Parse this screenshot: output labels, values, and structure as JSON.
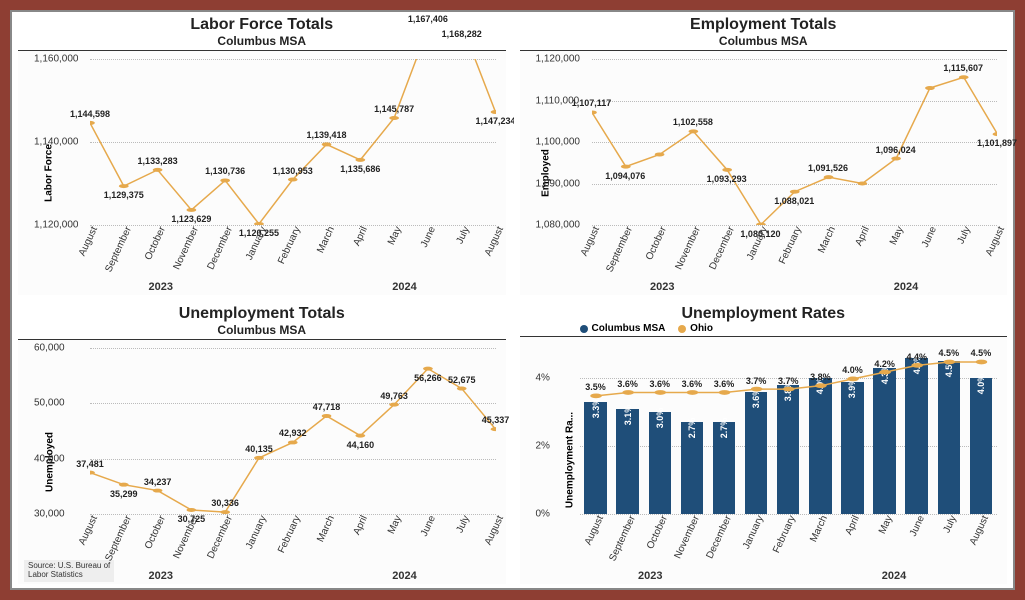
{
  "months": [
    "August",
    "September",
    "October",
    "November",
    "December",
    "January",
    "February",
    "March",
    "April",
    "May",
    "June",
    "July",
    "August"
  ],
  "years": {
    "y2023": "2023",
    "y2024": "2024"
  },
  "colors": {
    "line": "#e6a94c",
    "marker": "#e6a94c",
    "bar": "#1f4e79",
    "grid": "#bbbbbb",
    "text": "#222222",
    "bg": "#ffffff"
  },
  "panels": {
    "labor_force": {
      "title": "Labor Force Totals",
      "subtitle": "Columbus MSA",
      "ylabel": "Labor Force",
      "ylim": [
        1120000,
        1160000
      ],
      "ytick_step": 20000,
      "ytick_format": "comma",
      "values": [
        1144598,
        1129375,
        1133283,
        1123629,
        1130736,
        1120255,
        1130953,
        1139418,
        1135686,
        1145787,
        1167406,
        1168282,
        1147234
      ],
      "label_pos": [
        "above",
        "below",
        "above",
        "below",
        "above",
        "below",
        "above",
        "above",
        "below",
        "above",
        "above",
        "below",
        "below"
      ]
    },
    "employment": {
      "title": "Employment Totals",
      "subtitle": "Columbus MSA",
      "ylabel": "Employed",
      "ylim": [
        1080000,
        1120000
      ],
      "ytick_step": 10000,
      "ytick_format": "comma",
      "values": [
        1107117,
        1094076,
        1097000,
        1102558,
        1093293,
        1080120,
        1088021,
        1091526,
        1090000,
        1096024,
        1113000,
        1115607,
        1101897
      ],
      "show_label": [
        true,
        true,
        false,
        true,
        true,
        true,
        true,
        true,
        false,
        true,
        false,
        true,
        true
      ],
      "label_pos": [
        "above",
        "below",
        "below",
        "above",
        "below",
        "below",
        "below",
        "above",
        "below",
        "above",
        "above",
        "above",
        "below"
      ]
    },
    "unemployment_totals": {
      "title": "Unemployment Totals",
      "subtitle": "Columbus MSA",
      "ylabel": "Unemployed",
      "ylim": [
        30000,
        60000
      ],
      "ytick_step": 10000,
      "ytick_format": "comma",
      "values": [
        37481,
        35299,
        34237,
        30725,
        30336,
        40135,
        42932,
        47718,
        44160,
        49763,
        56266,
        52675,
        45337
      ],
      "label_pos": [
        "above",
        "below",
        "above",
        "below",
        "above",
        "above",
        "above",
        "above",
        "below",
        "above",
        "below",
        "above",
        "above"
      ]
    },
    "unemployment_rates": {
      "title": "Unemployment Rates",
      "ylabel": "Unemployment Ra...",
      "ylim": [
        0,
        5
      ],
      "ytick_step": 2,
      "ytick_format": "percent",
      "legend": {
        "columbus": "Columbus MSA",
        "ohio": "Ohio"
      },
      "columbus_values": [
        3.3,
        3.1,
        3.0,
        2.7,
        2.7,
        3.6,
        3.8,
        4.0,
        3.9,
        4.3,
        4.6,
        4.5,
        4.0
      ],
      "ohio_values": [
        3.5,
        3.6,
        3.6,
        3.6,
        3.6,
        3.7,
        3.7,
        3.8,
        4.0,
        4.2,
        4.4,
        4.5,
        4.5
      ],
      "bar_labels": [
        "3.3%",
        "3.1%",
        "3.0%",
        "2.7%",
        "2.7%",
        "3.6%",
        "3.8%",
        "4.0%",
        "3.9%",
        "4.3%",
        "4.6%",
        "4.5%",
        "4.0%"
      ],
      "ohio_labels": [
        "3.5%",
        "3.6%",
        "3.6%",
        "3.6%",
        "3.6%",
        "3.7%",
        "3.7%",
        "3.8%",
        "4.0%",
        "4.2%",
        "4.4%",
        "4.5%",
        "4.5%"
      ]
    }
  },
  "source_text": "Source: U.S. Bureau of\nLabor Statistics"
}
